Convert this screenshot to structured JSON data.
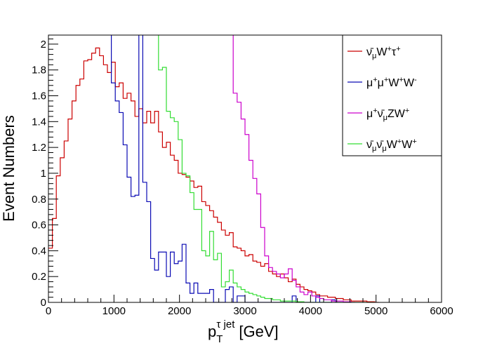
{
  "chart_data": {
    "type": "line",
    "style": "step-histogram",
    "title": "",
    "xlabel": "p_T^{τ jet} [GeV]",
    "xlabel_parts": {
      "main": "p",
      "sub": "T",
      "sup": "τ jet",
      "unit": "[GeV]"
    },
    "ylabel": "Event Numbers",
    "xlim": [
      0,
      6000
    ],
    "ylim": [
      0,
      2.07
    ],
    "x_ticks": [
      0,
      1000,
      2000,
      3000,
      4000,
      5000,
      6000
    ],
    "x_tick_labels": [
      "0",
      "1000",
      "2000",
      "3000",
      "4000",
      "5000",
      "6000"
    ],
    "y_ticks": [
      0,
      0.2,
      0.4,
      0.6,
      0.8,
      1,
      1.2,
      1.4,
      1.6,
      1.8,
      2
    ],
    "y_tick_labels": [
      "0",
      "0.2",
      "0.4",
      "0.6",
      "0.8",
      "1",
      "1.2",
      "1.4",
      "1.6",
      "1.8",
      "2"
    ],
    "legend_position": "top-right",
    "legend_entries": [
      "ν̄μW⁺τ⁺",
      "μ⁺μ⁺W⁺W⁻",
      "μ⁺ν̄μZW⁺",
      "ν̄μν̄μW⁺W⁺"
    ],
    "series": [
      {
        "name": "ν̄μW⁺τ⁺",
        "legend_parts": [
          {
            "t": "ν̄"
          },
          {
            "t": "μ",
            "sub": 1
          },
          {
            "t": "W"
          },
          {
            "t": "+",
            "sup": 1
          },
          {
            "t": "τ"
          },
          {
            "t": "+",
            "sup": 1
          }
        ],
        "color": "#cc0000",
        "x": [
          0,
          60,
          120,
          180,
          240,
          300,
          360,
          420,
          480,
          540,
          600,
          660,
          720,
          780,
          840,
          900,
          960,
          1020,
          1080,
          1140,
          1200,
          1260,
          1320,
          1380,
          1440,
          1500,
          1560,
          1620,
          1680,
          1740,
          1800,
          1860,
          1920,
          1980,
          2040,
          2100,
          2160,
          2220,
          2280,
          2340,
          2400,
          2460,
          2520,
          2580,
          2640,
          2700,
          2760,
          2820,
          2880,
          2940,
          3000,
          3060,
          3120,
          3180,
          3240,
          3300,
          3360,
          3420,
          3480,
          3540,
          3600,
          3660,
          3720,
          3780,
          3840,
          3900,
          3960,
          4020,
          4080,
          4140,
          4200,
          4260,
          4320,
          4380,
          4440,
          4500,
          4560,
          4620,
          4680,
          4740,
          4800,
          4860,
          4920,
          4980
        ],
        "values": [
          0.42,
          0.65,
          0.98,
          1.12,
          1.25,
          1.42,
          1.56,
          1.68,
          1.73,
          1.87,
          1.88,
          1.93,
          1.97,
          1.91,
          1.84,
          1.78,
          1.86,
          1.67,
          1.7,
          1.58,
          1.62,
          1.56,
          1.44,
          1.5,
          1.39,
          1.48,
          1.39,
          1.48,
          1.32,
          1.2,
          1.24,
          1.14,
          1.1,
          1.0,
          0.99,
          0.97,
          0.94,
          0.89,
          0.9,
          0.78,
          0.75,
          0.71,
          0.66,
          0.62,
          0.56,
          0.52,
          0.54,
          0.43,
          0.42,
          0.4,
          0.36,
          0.37,
          0.32,
          0.31,
          0.28,
          0.3,
          0.24,
          0.22,
          0.2,
          0.22,
          0.19,
          0.16,
          0.18,
          0.14,
          0.12,
          0.1,
          0.09,
          0.08,
          0.06,
          0.05,
          0.05,
          0.04,
          0.04,
          0.03,
          0.03,
          0.02,
          0.02,
          0.01,
          0.01,
          0.01,
          0.01,
          0.005,
          0.005,
          0.0
        ]
      },
      {
        "name": "μ⁺μ⁺W⁺W⁻",
        "legend_parts": [
          {
            "t": "μ"
          },
          {
            "t": "+",
            "sup": 1
          },
          {
            "t": "μ"
          },
          {
            "t": "+",
            "sup": 1
          },
          {
            "t": "W"
          },
          {
            "t": "+",
            "sup": 1
          },
          {
            "t": "W"
          },
          {
            "t": "-",
            "sup": 1
          }
        ],
        "color": "#0a0ab4",
        "x": [
          600,
          660,
          720,
          780,
          840,
          900,
          960,
          1020,
          1080,
          1140,
          1200,
          1260,
          1320,
          1380,
          1440,
          1500,
          1560,
          1620,
          1680,
          1740,
          1800,
          1860,
          1920,
          1980,
          2040,
          2100,
          2160,
          2220,
          2280,
          2340,
          2400,
          2460,
          2520,
          2580,
          2640,
          2700,
          2760,
          2820,
          2880,
          2940,
          3000,
          3060,
          3120,
          3180,
          3240,
          3300,
          3360,
          3420,
          3480,
          3540,
          3600,
          3660,
          3720,
          3780,
          3840,
          3900,
          3960,
          4020,
          4080,
          4140,
          4200,
          4260,
          4320,
          4380,
          4440
        ],
        "values": [
          2.1,
          2.1,
          2.1,
          2.1,
          2.1,
          2.1,
          1.7,
          1.56,
          1.47,
          1.22,
          0.97,
          0.82,
          0.83,
          2.1,
          0.93,
          0.78,
          0.34,
          0.25,
          0.39,
          0.39,
          0.2,
          0.39,
          0.3,
          0.32,
          0.45,
          0.15,
          0.07,
          0.15,
          0.07,
          0.07,
          0.07,
          0.1,
          0.0,
          0.0,
          0.0,
          0.1,
          0.12,
          0.0,
          0.05,
          0.05,
          0.0,
          0.0,
          0.0,
          0.0,
          0.0,
          0.0,
          0.0,
          0.0,
          0.0,
          0.0,
          0.0,
          0.0,
          0.05,
          0.0,
          0.0,
          0.0,
          0.0,
          0.0,
          0.05,
          0.0,
          0.0,
          0.0,
          0.02,
          0.0,
          0.0
        ]
      },
      {
        "name": "μ⁺ν̄μZW⁺",
        "legend_parts": [
          {
            "t": "μ"
          },
          {
            "t": "+",
            "sup": 1
          },
          {
            "t": "ν̄"
          },
          {
            "t": "μ",
            "sub": 1
          },
          {
            "t": "ZW"
          },
          {
            "t": "+",
            "sup": 1
          }
        ],
        "color": "#cc00cc",
        "x": [
          2760,
          2820,
          2880,
          2940,
          3000,
          3060,
          3120,
          3180,
          3240,
          3300,
          3360,
          3420,
          3480,
          3540,
          3600,
          3660,
          3720,
          3780,
          3840,
          3900,
          3960,
          4020,
          4080,
          4140,
          4200,
          4260,
          4320,
          4380,
          4440,
          4500,
          4560,
          4620
        ],
        "values": [
          2.1,
          1.62,
          1.55,
          1.42,
          1.3,
          1.1,
          0.96,
          0.84,
          0.58,
          0.36,
          0.27,
          0.24,
          0.22,
          0.19,
          0.22,
          0.26,
          0.17,
          0.12,
          0.08,
          0.06,
          0.08,
          0.05,
          0.04,
          0.03,
          0.02,
          0.02,
          0.01,
          0.01,
          0.01,
          0.005,
          0.005,
          0.0
        ]
      },
      {
        "name": "ν̄μν̄μW⁺W⁺",
        "legend_parts": [
          {
            "t": "ν̄"
          },
          {
            "t": "μ",
            "sub": 1
          },
          {
            "t": "ν̄"
          },
          {
            "t": "μ",
            "sub": 1
          },
          {
            "t": "W"
          },
          {
            "t": "+",
            "sup": 1
          },
          {
            "t": "W"
          },
          {
            "t": "+",
            "sup": 1
          }
        ],
        "color": "#33dd33",
        "x": [
          1500,
          1560,
          1620,
          1680,
          1740,
          1800,
          1860,
          1920,
          1980,
          2040,
          2100,
          2160,
          2220,
          2280,
          2340,
          2400,
          2460,
          2520,
          2580,
          2640,
          2700,
          2760,
          2820,
          2880,
          2940,
          3000,
          3060,
          3120,
          3180,
          3240,
          3300,
          3360,
          3420,
          3480,
          3540,
          3600,
          3660,
          3720,
          3780,
          3840,
          3900,
          3960,
          4020,
          4080,
          4140,
          4200,
          4260,
          4320,
          4380,
          4440,
          4500,
          4560,
          4620,
          4680,
          4740,
          4800,
          4860,
          4920
        ],
        "values": [
          2.1,
          2.1,
          2.1,
          1.8,
          1.82,
          1.48,
          1.43,
          1.4,
          1.26,
          1.0,
          0.98,
          0.85,
          0.72,
          0.72,
          0.4,
          0.36,
          0.55,
          0.33,
          0.38,
          0.12,
          0.16,
          0.25,
          0.15,
          0.12,
          0.1,
          0.08,
          0.07,
          0.06,
          0.05,
          0.04,
          0.03,
          0.03,
          0.02,
          0.02,
          0.01,
          0.01,
          0.01,
          0.01,
          0.005,
          0.005,
          0.0,
          0.0,
          0.0,
          0.0,
          0.0,
          0.0,
          0.0,
          0.0,
          0.0,
          0.0,
          0.0,
          0.0,
          0.0,
          0.0,
          0.0,
          0.0,
          0.0,
          0.0
        ]
      }
    ]
  }
}
